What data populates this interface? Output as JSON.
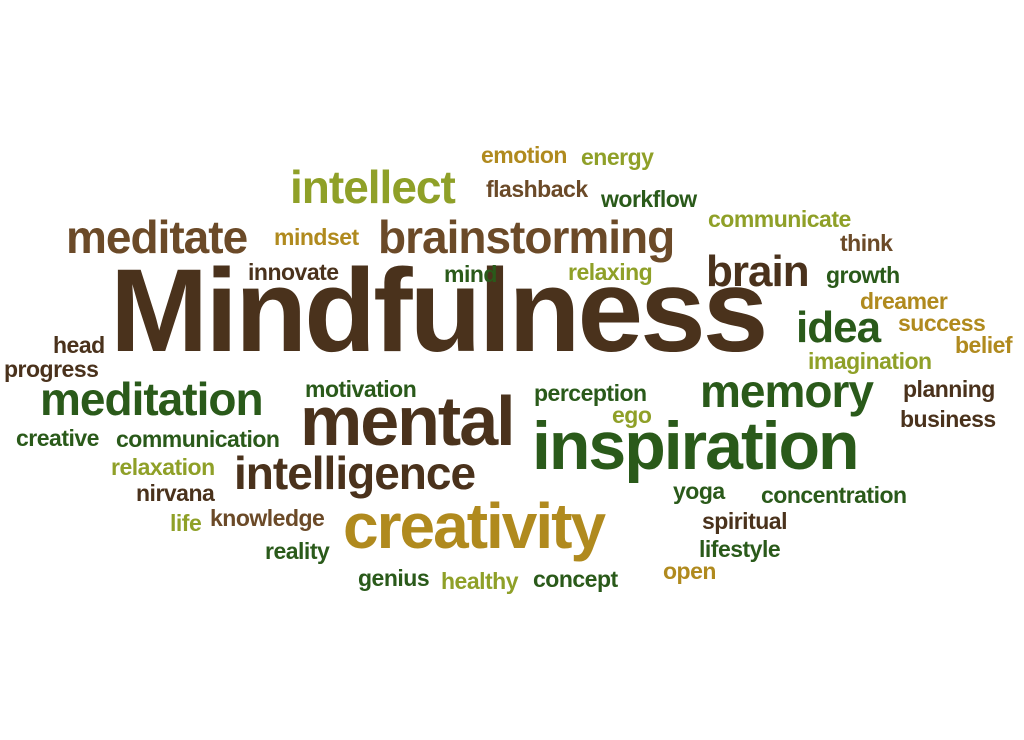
{
  "palette": {
    "dark_brown": "#4a321c",
    "dark_green": "#2a5a1a",
    "olive": "#8fa028",
    "gold": "#b08a1e",
    "brown": "#6b4a28"
  },
  "words": [
    {
      "text": "Mindfulness",
      "color": "dark_brown"
    },
    {
      "text": "inspiration",
      "color": "dark_green"
    },
    {
      "text": "creativity",
      "color": "gold"
    },
    {
      "text": "mental",
      "color": "dark_brown"
    },
    {
      "text": "brainstorming",
      "color": "brown"
    },
    {
      "text": "intellect",
      "color": "olive"
    },
    {
      "text": "meditate",
      "color": "brown"
    },
    {
      "text": "meditation",
      "color": "dark_green"
    },
    {
      "text": "intelligence",
      "color": "dark_brown"
    },
    {
      "text": "memory",
      "color": "dark_green"
    },
    {
      "text": "brain",
      "color": "dark_brown"
    },
    {
      "text": "idea",
      "color": "dark_green"
    },
    {
      "text": "emotion",
      "color": "gold"
    },
    {
      "text": "energy",
      "color": "olive"
    },
    {
      "text": "flashback",
      "color": "brown"
    },
    {
      "text": "workflow",
      "color": "dark_green"
    },
    {
      "text": "communicate",
      "color": "olive"
    },
    {
      "text": "think",
      "color": "brown"
    },
    {
      "text": "mindset",
      "color": "gold"
    },
    {
      "text": "innovate",
      "color": "dark_brown"
    },
    {
      "text": "mind",
      "color": "dark_green"
    },
    {
      "text": "relaxing",
      "color": "olive"
    },
    {
      "text": "growth",
      "color": "dark_green"
    },
    {
      "text": "dreamer",
      "color": "gold"
    },
    {
      "text": "success",
      "color": "gold"
    },
    {
      "text": "belief",
      "color": "gold"
    },
    {
      "text": "imagination",
      "color": "olive"
    },
    {
      "text": "head",
      "color": "dark_brown"
    },
    {
      "text": "progress",
      "color": "dark_brown"
    },
    {
      "text": "motivation",
      "color": "dark_green"
    },
    {
      "text": "perception",
      "color": "dark_green"
    },
    {
      "text": "ego",
      "color": "olive"
    },
    {
      "text": "planning",
      "color": "dark_brown"
    },
    {
      "text": "business",
      "color": "dark_brown"
    },
    {
      "text": "creative",
      "color": "dark_green"
    },
    {
      "text": "communication",
      "color": "dark_green"
    },
    {
      "text": "relaxation",
      "color": "olive"
    },
    {
      "text": "nirvana",
      "color": "dark_brown"
    },
    {
      "text": "yoga",
      "color": "dark_green"
    },
    {
      "text": "concentration",
      "color": "dark_green"
    },
    {
      "text": "life",
      "color": "olive"
    },
    {
      "text": "knowledge",
      "color": "brown"
    },
    {
      "text": "spiritual",
      "color": "dark_brown"
    },
    {
      "text": "reality",
      "color": "dark_green"
    },
    {
      "text": "lifestyle",
      "color": "dark_green"
    },
    {
      "text": "genius",
      "color": "dark_green"
    },
    {
      "text": "healthy",
      "color": "olive"
    },
    {
      "text": "concept",
      "color": "dark_green"
    },
    {
      "text": "open",
      "color": "gold"
    }
  ]
}
